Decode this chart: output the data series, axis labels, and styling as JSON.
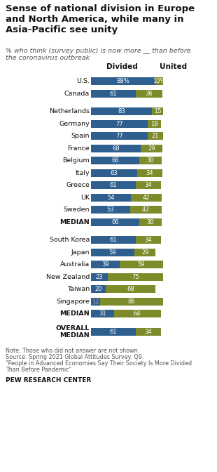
{
  "title": "Sense of national division in Europe\nand North America, while many in\nAsia-Pacific see unity",
  "subtitle": "% who think (survey public) is now more __ than before\nthe coronavirus outbreak",
  "col_headers": [
    "Divided",
    "United"
  ],
  "countries": [
    "U.S.",
    "Canada",
    "",
    "Netherlands",
    "Germany",
    "Spain",
    "France",
    "Belgium",
    "Italy",
    "Greece",
    "UK",
    "Sweden",
    "MEDIAN",
    "",
    "South Korea",
    "Japan",
    "Australia",
    "New Zealand",
    "Taiwan",
    "Singapore",
    "MEDIAN",
    "",
    "OVERALL\nMEDIAN"
  ],
  "divided": [
    88,
    61,
    null,
    83,
    77,
    77,
    68,
    66,
    63,
    61,
    54,
    53,
    66,
    null,
    61,
    59,
    39,
    23,
    20,
    12,
    31,
    null,
    61
  ],
  "united": [
    10,
    36,
    null,
    15,
    18,
    21,
    29,
    30,
    34,
    34,
    42,
    43,
    30,
    null,
    34,
    29,
    59,
    75,
    68,
    86,
    64,
    null,
    34
  ],
  "is_median": [
    false,
    false,
    false,
    false,
    false,
    false,
    false,
    false,
    false,
    false,
    false,
    false,
    true,
    false,
    false,
    false,
    false,
    false,
    false,
    false,
    true,
    false,
    true
  ],
  "is_separator": [
    false,
    false,
    true,
    false,
    false,
    false,
    false,
    false,
    false,
    false,
    false,
    false,
    false,
    true,
    false,
    false,
    false,
    false,
    false,
    false,
    false,
    true,
    false
  ],
  "show_pct": [
    true,
    false,
    false,
    false,
    false,
    false,
    false,
    false,
    false,
    false,
    false,
    false,
    false,
    false,
    false,
    false,
    false,
    false,
    false,
    false,
    false,
    false,
    false
  ],
  "small_divided": [
    false,
    false,
    false,
    false,
    false,
    false,
    false,
    false,
    false,
    false,
    false,
    false,
    false,
    false,
    false,
    false,
    false,
    false,
    false,
    true,
    false,
    false,
    false
  ],
  "divided_color": "#2E5F8E",
  "united_color": "#7D8B2A",
  "background_color": "#FFFFFF",
  "note1": "Note: Those who did not answer are not shown.",
  "note2": "Source: Spring 2021 Global Attitudes Survey. Q9.",
  "note3": "\"People in Advanced Economies Say Their Society Is More Divided",
  "note4": "Than Before Pandemic\"",
  "footer": "PEW RESEARCH CENTER",
  "fig_width": 3.1,
  "fig_height": 6.72
}
